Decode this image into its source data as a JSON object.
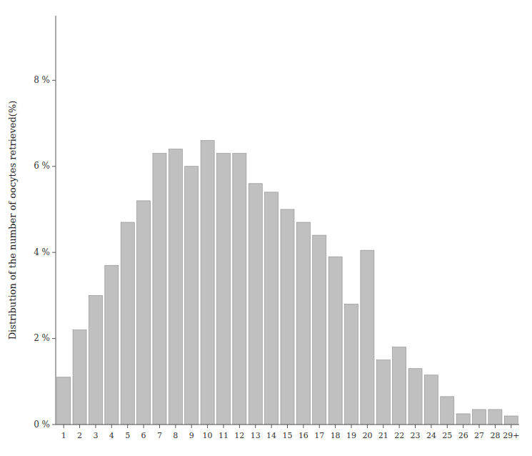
{
  "chart_data": {
    "type": "bar",
    "ylabel": "Distribution of the number of oocytes retrieved(%)",
    "categories": [
      "1",
      "2",
      "3",
      "4",
      "5",
      "6",
      "7",
      "8",
      "9",
      "10",
      "11",
      "12",
      "13",
      "14",
      "15",
      "16",
      "17",
      "18",
      "19",
      "20",
      "21",
      "22",
      "23",
      "24",
      "25",
      "26",
      "27",
      "28",
      "29+"
    ],
    "values": [
      1.1,
      2.2,
      3.0,
      3.7,
      4.7,
      5.2,
      6.3,
      6.4,
      6.0,
      6.6,
      6.3,
      6.3,
      5.6,
      5.4,
      5.0,
      4.7,
      4.4,
      3.9,
      2.8,
      4.05,
      1.5,
      1.8,
      1.3,
      1.15,
      0.65,
      0.25,
      0.35,
      0.35,
      0.2
    ],
    "color": "#c0c0c0",
    "ylim": [
      0,
      9.5
    ],
    "yticks": [
      {
        "value": 0,
        "label": "0 %"
      },
      {
        "value": 2,
        "label": "2 %"
      },
      {
        "value": 4,
        "label": "4 %"
      },
      {
        "value": 6,
        "label": "6 %"
      },
      {
        "value": 8,
        "label": "8 %"
      }
    ],
    "grid": false
  }
}
